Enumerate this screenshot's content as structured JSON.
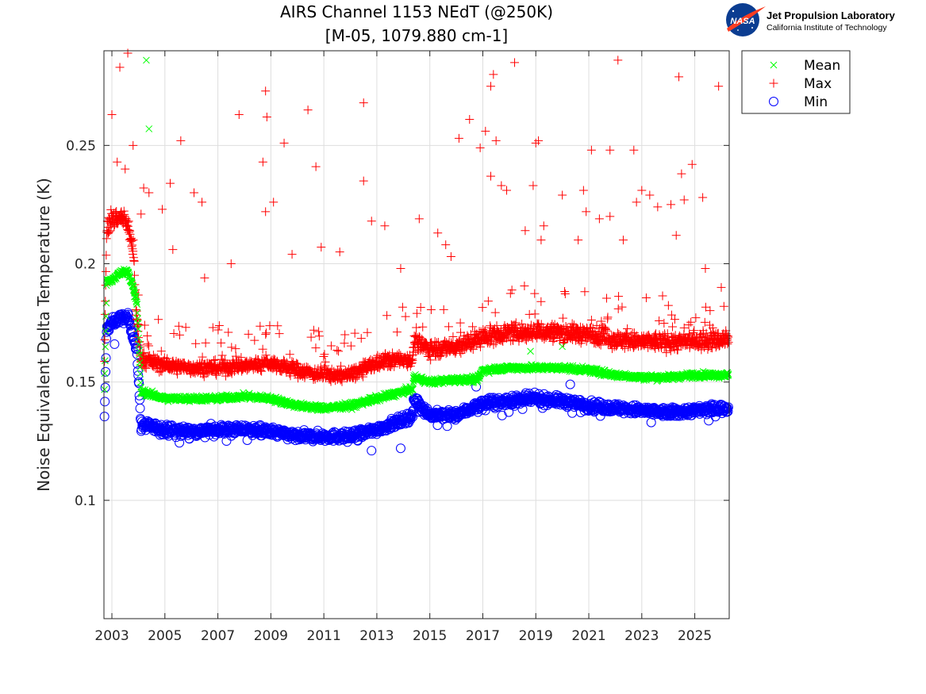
{
  "chart_data": {
    "type": "scatter",
    "title": "AIRS Channel 1153 NEdT (@250K)",
    "subtitle": "[M-05, 1079.880 cm-1]",
    "xlabel": "",
    "ylabel": "Noise Equivalent Delta Temperature (K)",
    "xlim": [
      2002.7,
      2026.3
    ],
    "ylim": [
      0.05,
      0.29
    ],
    "x_ticks": [
      "2003",
      "2005",
      "2007",
      "2009",
      "2011",
      "2013",
      "2015",
      "2017",
      "2019",
      "2021",
      "2023",
      "2025"
    ],
    "y_ticks": [
      "0.1",
      "0.15",
      "0.2",
      "0.25"
    ],
    "grid": true,
    "legend_position": "outside-top-right",
    "series": [
      {
        "name": "Mean",
        "marker": "x",
        "color": "#00ff00",
        "trend": [
          [
            2002.7,
            0.136
          ],
          [
            2002.8,
            0.192
          ],
          [
            2003.0,
            0.193
          ],
          [
            2003.3,
            0.196
          ],
          [
            2003.6,
            0.197
          ],
          [
            2003.8,
            0.19
          ],
          [
            2003.95,
            0.183
          ],
          [
            2004.1,
            0.146
          ],
          [
            2005.0,
            0.143
          ],
          [
            2006.0,
            0.143
          ],
          [
            2007.0,
            0.143
          ],
          [
            2008.0,
            0.144
          ],
          [
            2009.0,
            0.143
          ],
          [
            2010.0,
            0.14
          ],
          [
            2011.0,
            0.139
          ],
          [
            2012.0,
            0.14
          ],
          [
            2013.0,
            0.143
          ],
          [
            2014.0,
            0.146
          ],
          [
            2014.35,
            0.147
          ],
          [
            2014.4,
            0.152
          ],
          [
            2015.0,
            0.15
          ],
          [
            2016.0,
            0.151
          ],
          [
            2016.8,
            0.151
          ],
          [
            2017.0,
            0.155
          ],
          [
            2018.0,
            0.156
          ],
          [
            2019.0,
            0.156
          ],
          [
            2020.0,
            0.156
          ],
          [
            2021.0,
            0.155
          ],
          [
            2022.0,
            0.153
          ],
          [
            2023.0,
            0.152
          ],
          [
            2024.0,
            0.152
          ],
          [
            2025.0,
            0.153
          ],
          [
            2026.3,
            0.153
          ]
        ],
        "outliers": [
          [
            2004.3,
            0.286
          ],
          [
            2004.4,
            0.257
          ],
          [
            2003.85,
            0.186
          ],
          [
            2018.8,
            0.163
          ],
          [
            2020.0,
            0.165
          ]
        ]
      },
      {
        "name": "Max",
        "marker": "+",
        "color": "#ff0000",
        "trend": [
          [
            2002.7,
            0.149
          ],
          [
            2002.8,
            0.215
          ],
          [
            2003.0,
            0.218
          ],
          [
            2003.3,
            0.22
          ],
          [
            2003.6,
            0.217
          ],
          [
            2003.8,
            0.205
          ],
          [
            2003.95,
            0.175
          ],
          [
            2004.1,
            0.16
          ],
          [
            2005.0,
            0.157
          ],
          [
            2006.0,
            0.156
          ],
          [
            2007.0,
            0.156
          ],
          [
            2008.0,
            0.157
          ],
          [
            2009.0,
            0.158
          ],
          [
            2010.0,
            0.155
          ],
          [
            2011.0,
            0.153
          ],
          [
            2012.0,
            0.153
          ],
          [
            2013.0,
            0.158
          ],
          [
            2014.0,
            0.16
          ],
          [
            2014.35,
            0.159
          ],
          [
            2014.4,
            0.167
          ],
          [
            2015.0,
            0.164
          ],
          [
            2016.0,
            0.165
          ],
          [
            2017.0,
            0.169
          ],
          [
            2018.0,
            0.171
          ],
          [
            2019.0,
            0.171
          ],
          [
            2020.0,
            0.171
          ],
          [
            2021.0,
            0.17
          ],
          [
            2022.0,
            0.168
          ],
          [
            2023.0,
            0.167
          ],
          [
            2024.0,
            0.167
          ],
          [
            2025.0,
            0.167
          ],
          [
            2026.3,
            0.168
          ]
        ],
        "outliers": [
          [
            2003.0,
            0.263
          ],
          [
            2003.3,
            0.283
          ],
          [
            2003.6,
            0.289
          ],
          [
            2003.8,
            0.25
          ],
          [
            2003.2,
            0.243
          ],
          [
            2003.5,
            0.24
          ],
          [
            2004.4,
            0.23
          ],
          [
            2004.9,
            0.223
          ],
          [
            2005.2,
            0.234
          ],
          [
            2005.6,
            0.252
          ],
          [
            2006.1,
            0.23
          ],
          [
            2006.4,
            0.226
          ],
          [
            2007.8,
            0.263
          ],
          [
            2008.7,
            0.243
          ],
          [
            2008.8,
            0.273
          ],
          [
            2008.85,
            0.262
          ],
          [
            2009.1,
            0.226
          ],
          [
            2008.8,
            0.222
          ],
          [
            2009.5,
            0.251
          ],
          [
            2010.4,
            0.265
          ],
          [
            2010.7,
            0.241
          ],
          [
            2012.5,
            0.268
          ],
          [
            2012.5,
            0.235
          ],
          [
            2012.8,
            0.218
          ],
          [
            2013.3,
            0.216
          ],
          [
            2014.6,
            0.219
          ],
          [
            2015.3,
            0.213
          ],
          [
            2015.6,
            0.208
          ],
          [
            2016.1,
            0.253
          ],
          [
            2016.5,
            0.261
          ],
          [
            2016.9,
            0.249
          ],
          [
            2017.1,
            0.256
          ],
          [
            2017.3,
            0.275
          ],
          [
            2017.4,
            0.28
          ],
          [
            2017.5,
            0.252
          ],
          [
            2017.3,
            0.237
          ],
          [
            2017.7,
            0.233
          ],
          [
            2017.9,
            0.231
          ],
          [
            2018.2,
            0.285
          ],
          [
            2018.9,
            0.233
          ],
          [
            2019.0,
            0.251
          ],
          [
            2019.1,
            0.252
          ],
          [
            2019.3,
            0.216
          ],
          [
            2019.2,
            0.21
          ],
          [
            2020.0,
            0.229
          ],
          [
            2020.6,
            0.21
          ],
          [
            2020.8,
            0.231
          ],
          [
            2020.9,
            0.222
          ],
          [
            2021.1,
            0.248
          ],
          [
            2021.4,
            0.219
          ],
          [
            2021.8,
            0.248
          ],
          [
            2021.8,
            0.22
          ],
          [
            2022.1,
            0.286
          ],
          [
            2022.3,
            0.21
          ],
          [
            2022.7,
            0.248
          ],
          [
            2022.8,
            0.226
          ],
          [
            2023.0,
            0.231
          ],
          [
            2023.3,
            0.229
          ],
          [
            2023.6,
            0.224
          ],
          [
            2024.1,
            0.225
          ],
          [
            2024.3,
            0.212
          ],
          [
            2024.4,
            0.279
          ],
          [
            2024.5,
            0.238
          ],
          [
            2024.6,
            0.227
          ],
          [
            2024.9,
            0.242
          ],
          [
            2025.3,
            0.228
          ],
          [
            2025.4,
            0.198
          ],
          [
            2025.9,
            0.275
          ],
          [
            2026.0,
            0.19
          ],
          [
            2026.1,
            0.182
          ],
          [
            2004.1,
            0.221
          ],
          [
            2004.2,
            0.232
          ],
          [
            2005.3,
            0.206
          ],
          [
            2006.5,
            0.194
          ],
          [
            2007.5,
            0.2
          ],
          [
            2009.8,
            0.204
          ],
          [
            2010.9,
            0.207
          ],
          [
            2011.6,
            0.205
          ],
          [
            2013.9,
            0.198
          ],
          [
            2015.8,
            0.203
          ],
          [
            2018.6,
            0.214
          ]
        ]
      },
      {
        "name": "Min",
        "marker": "o",
        "color": "#0000ff",
        "trend": [
          [
            2002.7,
            0.125
          ],
          [
            2002.8,
            0.172
          ],
          [
            2003.0,
            0.175
          ],
          [
            2003.3,
            0.177
          ],
          [
            2003.6,
            0.177
          ],
          [
            2003.8,
            0.17
          ],
          [
            2003.95,
            0.162
          ],
          [
            2004.1,
            0.132
          ],
          [
            2005.0,
            0.13
          ],
          [
            2006.0,
            0.129
          ],
          [
            2007.0,
            0.13
          ],
          [
            2008.0,
            0.13
          ],
          [
            2009.0,
            0.129
          ],
          [
            2010.0,
            0.127
          ],
          [
            2011.0,
            0.127
          ],
          [
            2012.0,
            0.127
          ],
          [
            2013.0,
            0.13
          ],
          [
            2014.0,
            0.134
          ],
          [
            2014.35,
            0.136
          ],
          [
            2014.4,
            0.143
          ],
          [
            2015.0,
            0.136
          ],
          [
            2016.0,
            0.136
          ],
          [
            2017.0,
            0.141
          ],
          [
            2018.0,
            0.142
          ],
          [
            2019.0,
            0.143
          ],
          [
            2020.0,
            0.142
          ],
          [
            2021.0,
            0.14
          ],
          [
            2022.0,
            0.139
          ],
          [
            2023.0,
            0.138
          ],
          [
            2024.0,
            0.137
          ],
          [
            2025.0,
            0.138
          ],
          [
            2026.3,
            0.139
          ]
        ],
        "outliers": [
          [
            2016.75,
            0.148
          ],
          [
            2020.3,
            0.149
          ],
          [
            2013.9,
            0.122
          ],
          [
            2003.1,
            0.166
          ],
          [
            2012.8,
            0.121
          ]
        ]
      }
    ]
  },
  "logo": {
    "nasa_text": "NASA",
    "title": "Jet Propulsion Laboratory",
    "subtitle": "California Institute of Technology"
  }
}
